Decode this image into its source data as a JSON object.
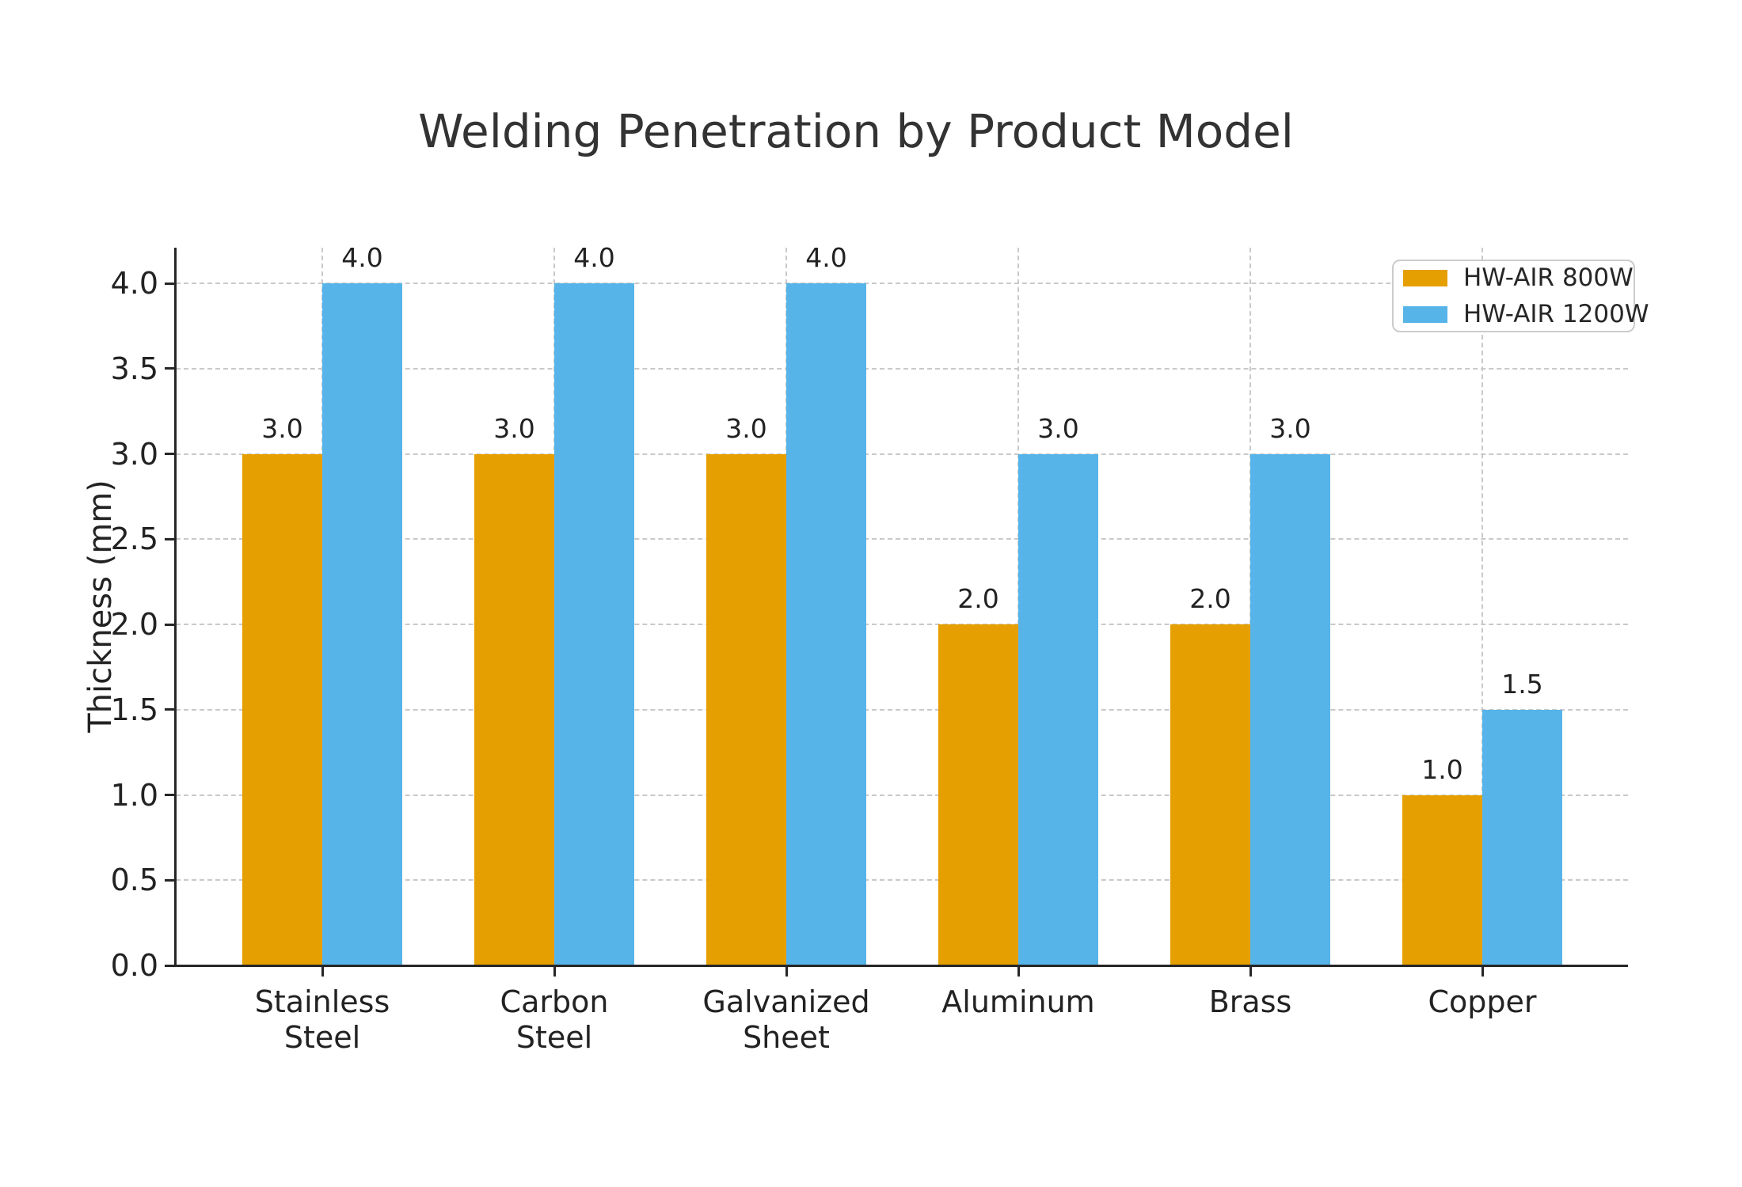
{
  "chart_data": {
    "type": "bar",
    "title": "Welding Penetration by Product Model",
    "ylabel": "Thickness (mm)",
    "xlabel": "",
    "categories": [
      "Stainless\nSteel",
      "Carbon\nSteel",
      "Galvanized\nSheet",
      "Aluminum",
      "Brass",
      "Copper"
    ],
    "series": [
      {
        "name": "HW-AIR 800W",
        "color": "#E69F00",
        "values": [
          3.0,
          3.0,
          3.0,
          2.0,
          2.0,
          1.0
        ]
      },
      {
        "name": "HW-AIR 1200W",
        "color": "#56B4E9",
        "values": [
          4.0,
          4.0,
          4.0,
          3.0,
          3.0,
          1.5
        ]
      }
    ],
    "yticks": [
      0.0,
      0.5,
      1.0,
      1.5,
      2.0,
      2.5,
      3.0,
      3.5,
      4.0
    ],
    "ytick_labels": [
      "0.0",
      "0.5",
      "1.0",
      "1.5",
      "2.0",
      "2.5",
      "3.0",
      "3.5",
      "4.0"
    ],
    "ylim": [
      0,
      4.2
    ],
    "grid": "both-dashed",
    "legend_position": "upper right",
    "bar_value_labels": true,
    "value_label_format": "one-decimal",
    "colors": {
      "grid": "#c9c9c9",
      "spine": "#262626",
      "text": "#222222",
      "title": "#333333",
      "background": "#ffffff"
    }
  }
}
